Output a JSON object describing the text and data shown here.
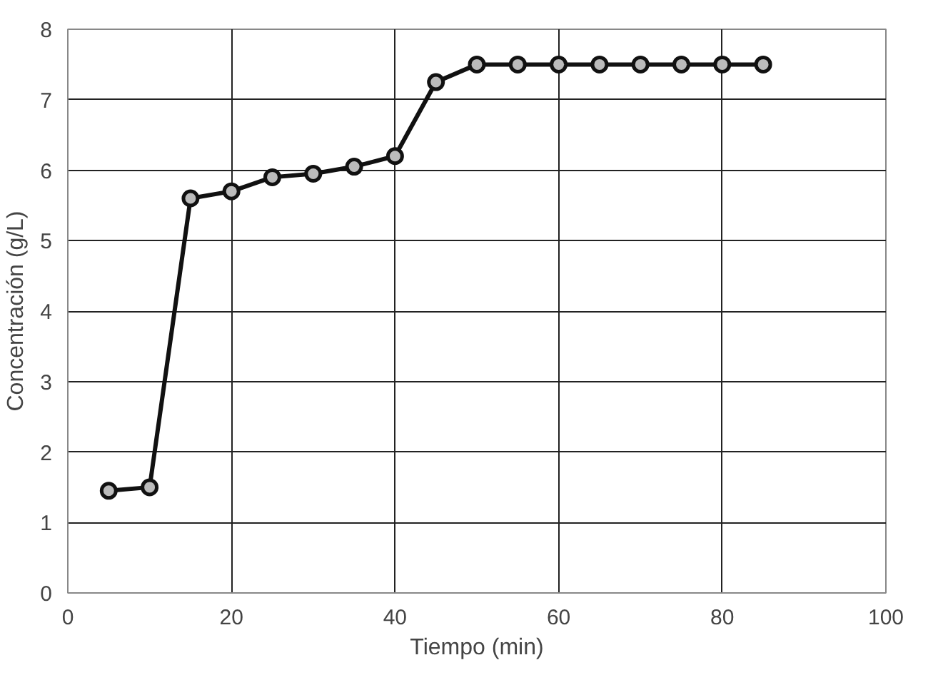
{
  "chart_data": {
    "type": "line",
    "xlabel": "Tiempo (min)",
    "ylabel": "Concentración (g/L)",
    "x": [
      5,
      10,
      15,
      20,
      25,
      30,
      35,
      40,
      45,
      50,
      55,
      60,
      65,
      70,
      75,
      80,
      85
    ],
    "series": [
      {
        "color": "#111111",
        "values": [
          1.45,
          1.5,
          5.6,
          5.7,
          5.9,
          5.95,
          6.05,
          6.2,
          7.25,
          7.5,
          7.5,
          7.5,
          7.5,
          7.5,
          7.5,
          7.5,
          7.5
        ]
      }
    ],
    "xlim": [
      0,
      100
    ],
    "xticks": [
      0,
      20,
      40,
      60,
      80,
      100
    ],
    "ylim": [
      0,
      8
    ],
    "yticks": [
      0,
      1,
      2,
      3,
      4,
      5,
      6,
      7,
      8
    ],
    "grid": true,
    "marker": "circle",
    "line_style": "solid"
  }
}
